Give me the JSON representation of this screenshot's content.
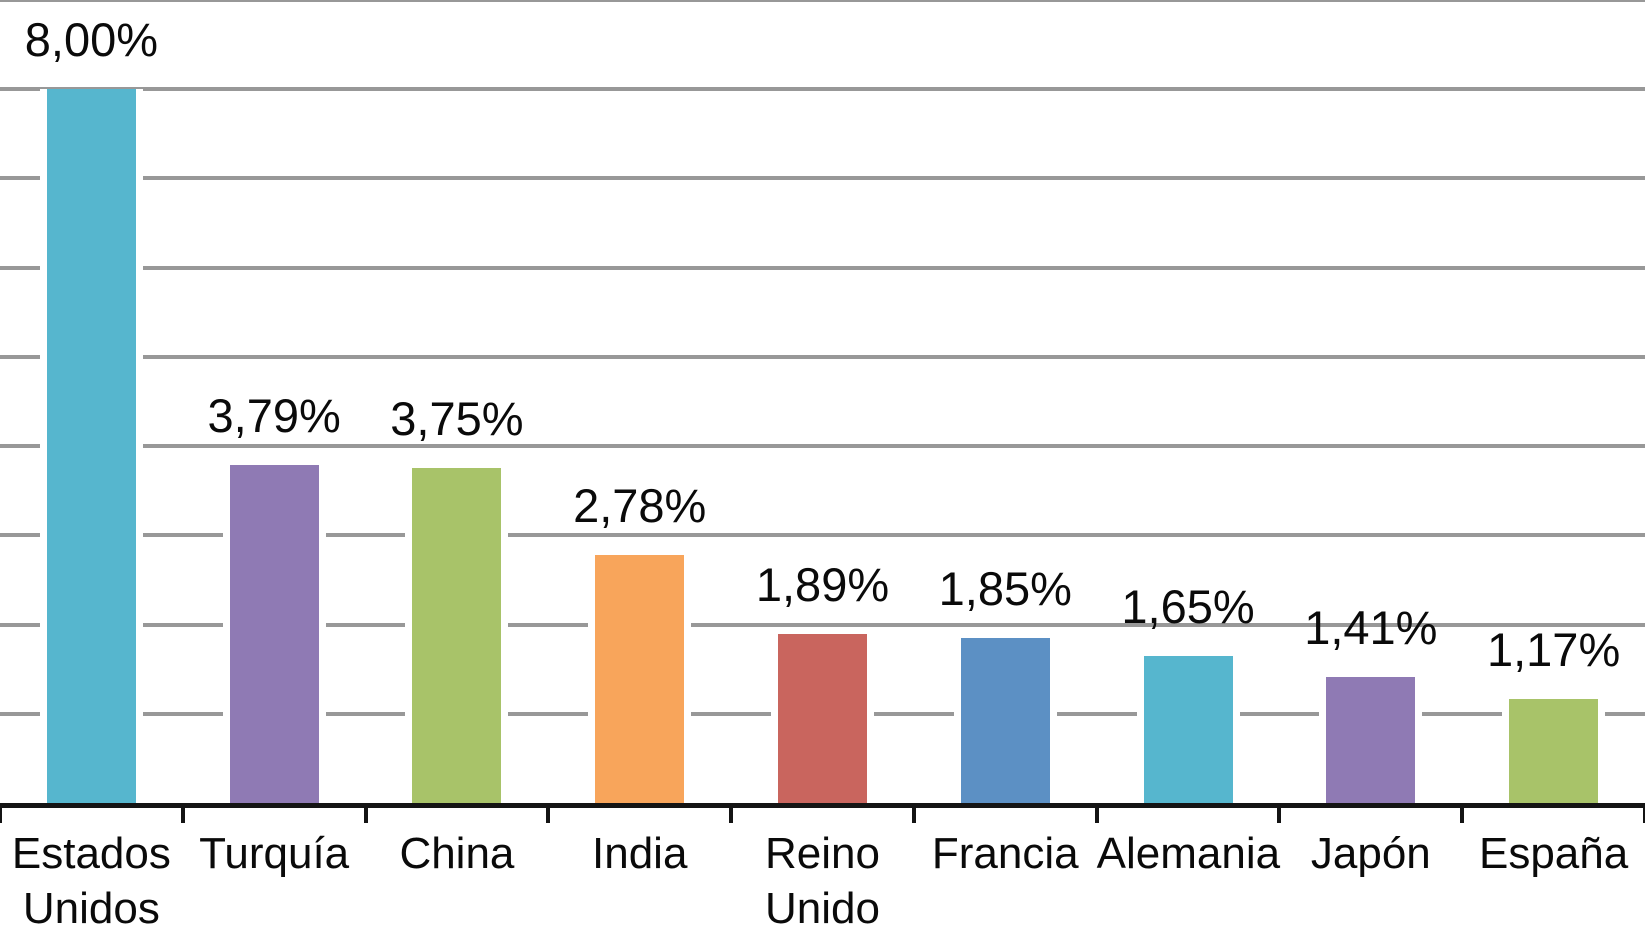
{
  "chart_data": {
    "type": "bar",
    "title": "",
    "xlabel": "",
    "ylabel": "",
    "categories": [
      "Estados\nUnidos",
      "Turquía",
      "China",
      "India",
      "Reino\nUnido",
      "Francia",
      "Alemania",
      "Japón",
      "España"
    ],
    "values": [
      8.0,
      3.79,
      3.75,
      2.78,
      1.89,
      1.85,
      1.65,
      1.41,
      1.17
    ],
    "value_labels": [
      "8,00%",
      "3,79%",
      "3,75%",
      "2,78%",
      "1,89%",
      "1,85%",
      "1,65%",
      "1,41%",
      "1,17%"
    ],
    "bar_colors": [
      "#56b6ce",
      "#8f7ab4",
      "#a8c369",
      "#f8a55b",
      "#c9655e",
      "#5c90c4",
      "#56b6ce",
      "#8f7ab4",
      "#a8c369"
    ],
    "ylim": [
      0,
      9
    ],
    "grid": true,
    "grid_interval": 1,
    "y_tick_labels_shown": false,
    "legend_position": "none",
    "number_format": "comma-decimal percent (es)",
    "colors": {
      "background": "#ffffff",
      "gridline": "#989898",
      "axis_line": "#141414",
      "tick": "#141414",
      "label_text": "#0a0a0a",
      "bar_outline": "#ffffff"
    }
  }
}
